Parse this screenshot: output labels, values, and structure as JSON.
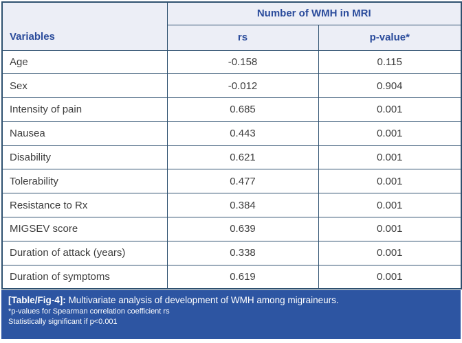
{
  "table": {
    "span_header": "Number of WMH in MRI",
    "col_headers": [
      "Variables",
      "rs",
      "p-value*"
    ],
    "rows": [
      {
        "variable": "Age",
        "rs": "-0.158",
        "p": "0.115"
      },
      {
        "variable": "Sex",
        "rs": "-0.012",
        "p": "0.904"
      },
      {
        "variable": "Intensity of pain",
        "rs": "0.685",
        "p": "0.001"
      },
      {
        "variable": "Nausea",
        "rs": "0.443",
        "p": "0.001"
      },
      {
        "variable": "Disability",
        "rs": "0.621",
        "p": "0.001"
      },
      {
        "variable": "Tolerability",
        "rs": "0.477",
        "p": "0.001"
      },
      {
        "variable": "Resistance to Rx",
        "rs": "0.384",
        "p": "0.001"
      },
      {
        "variable": "MIGSEV score",
        "rs": "0.639",
        "p": "0.001"
      },
      {
        "variable": "Duration of attack (years)",
        "rs": "0.338",
        "p": "0.001"
      },
      {
        "variable": "Duration of symptoms",
        "rs": "0.619",
        "p": "0.001"
      }
    ]
  },
  "caption": {
    "label": "[Table/Fig-4]:",
    "text": " Multivariate analysis of development of WMH among migraineurs.",
    "footnote1": "*p-values for Spearman correlation coefficient rs",
    "footnote2": "Statistically significant if p<0.001"
  },
  "colors": {
    "border_navy": "#2e506f",
    "header_bg": "#eceef6",
    "header_text": "#2a4b9b",
    "body_text": "#3d3d3d",
    "caption_bg": "#2d55a2",
    "caption_text": "#ffffff"
  },
  "chart_data": {
    "type": "table",
    "title": "Number of WMH in MRI",
    "columns": [
      "Variables",
      "rs",
      "p-value*"
    ],
    "rows": [
      [
        "Age",
        -0.158,
        0.115
      ],
      [
        "Sex",
        -0.012,
        0.904
      ],
      [
        "Intensity of pain",
        0.685,
        0.001
      ],
      [
        "Nausea",
        0.443,
        0.001
      ],
      [
        "Disability",
        0.621,
        0.001
      ],
      [
        "Tolerability",
        0.477,
        0.001
      ],
      [
        "Resistance to Rx",
        0.384,
        0.001
      ],
      [
        "MIGSEV score",
        0.639,
        0.001
      ],
      [
        "Duration of attack (years)",
        0.338,
        0.001
      ],
      [
        "Duration of symptoms",
        0.619,
        0.001
      ]
    ]
  }
}
